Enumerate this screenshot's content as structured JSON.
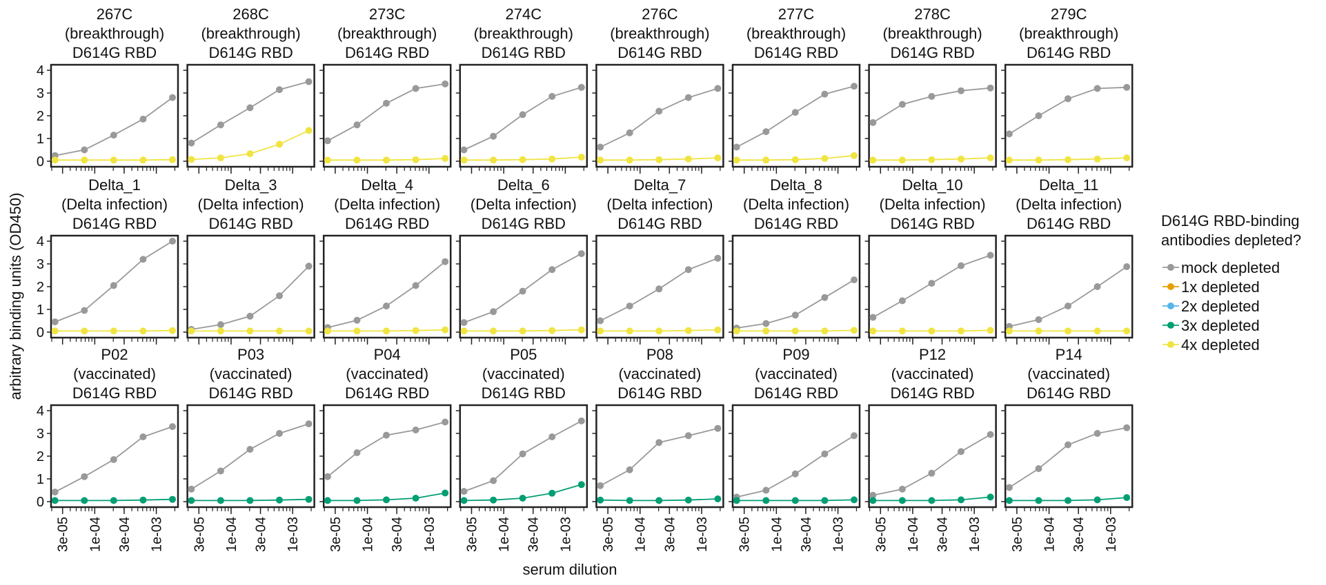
{
  "figure": {
    "ylabel": "arbitrary binding units (OD450)",
    "xlabel": "serum dilution",
    "xticks": [
      "3e-05",
      "1e-04",
      "3e-04",
      "1e-03"
    ],
    "yticks": [
      "0",
      "1",
      "2",
      "3",
      "4"
    ],
    "legend_title": [
      "D614G RBD-binding",
      "antibodies depleted?"
    ],
    "legend": [
      {
        "label": "mock depleted",
        "color": "#999999"
      },
      {
        "label": "1x depleted",
        "color": "#E69F00"
      },
      {
        "label": "2x depleted",
        "color": "#56B4E9"
      },
      {
        "label": "3x depleted",
        "color": "#009E73"
      },
      {
        "label": "4x depleted",
        "color": "#F0E442"
      }
    ]
  },
  "chart_data": {
    "type": "line",
    "x_scale": "log",
    "x": [
      2.26e-05,
      6.78e-05,
      0.000203,
      0.00061,
      0.00183
    ],
    "xlim": [
      1.95e-05,
      0.00225
    ],
    "ylim": [
      0,
      4
    ],
    "legend_position": "right",
    "panels": [
      {
        "title": [
          "267C",
          "(breakthrough)",
          "D614G RBD"
        ],
        "series": [
          {
            "name": "mock depleted",
            "values": [
              0.25,
              0.5,
              1.15,
              1.85,
              2.8
            ]
          },
          {
            "name": "4x depleted",
            "values": [
              0.05,
              0.05,
              0.05,
              0.05,
              0.07
            ]
          }
        ]
      },
      {
        "title": [
          "268C",
          "(breakthrough)",
          "D614G RBD"
        ],
        "series": [
          {
            "name": "mock depleted",
            "values": [
              0.8,
              1.6,
              2.35,
              3.15,
              3.5
            ]
          },
          {
            "name": "4x depleted",
            "values": [
              0.08,
              0.15,
              0.33,
              0.75,
              1.35
            ]
          }
        ]
      },
      {
        "title": [
          "273C",
          "(breakthrough)",
          "D614G RBD"
        ],
        "series": [
          {
            "name": "mock depleted",
            "values": [
              0.9,
              1.6,
              2.55,
              3.2,
              3.4
            ]
          },
          {
            "name": "4x depleted",
            "values": [
              0.05,
              0.05,
              0.05,
              0.07,
              0.12
            ]
          }
        ]
      },
      {
        "title": [
          "274C",
          "(breakthrough)",
          "D614G RBD"
        ],
        "series": [
          {
            "name": "mock depleted",
            "values": [
              0.5,
              1.1,
              2.05,
              2.85,
              3.25
            ]
          },
          {
            "name": "4x depleted",
            "values": [
              0.05,
              0.05,
              0.07,
              0.1,
              0.18
            ]
          }
        ]
      },
      {
        "title": [
          "276C",
          "(breakthrough)",
          "D614G RBD"
        ],
        "series": [
          {
            "name": "mock depleted",
            "values": [
              0.62,
              1.25,
              2.2,
              2.8,
              3.2
            ]
          },
          {
            "name": "4x depleted",
            "values": [
              0.05,
              0.05,
              0.07,
              0.1,
              0.15
            ]
          }
        ]
      },
      {
        "title": [
          "277C",
          "(breakthrough)",
          "D614G RBD"
        ],
        "series": [
          {
            "name": "mock depleted",
            "values": [
              0.62,
              1.3,
              2.15,
              2.95,
              3.3
            ]
          },
          {
            "name": "4x depleted",
            "values": [
              0.05,
              0.05,
              0.07,
              0.12,
              0.25
            ]
          }
        ]
      },
      {
        "title": [
          "278C",
          "(breakthrough)",
          "D614G RBD"
        ],
        "series": [
          {
            "name": "mock depleted",
            "values": [
              1.7,
              2.5,
              2.85,
              3.1,
              3.22
            ]
          },
          {
            "name": "4x depleted",
            "values": [
              0.05,
              0.05,
              0.07,
              0.1,
              0.15
            ]
          }
        ]
      },
      {
        "title": [
          "279C",
          "(breakthrough)",
          "D614G RBD"
        ],
        "series": [
          {
            "name": "mock depleted",
            "values": [
              1.2,
              2.0,
              2.75,
              3.2,
              3.25
            ]
          },
          {
            "name": "4x depleted",
            "values": [
              0.05,
              0.05,
              0.07,
              0.1,
              0.15
            ]
          }
        ]
      },
      {
        "title": [
          "Delta_1",
          "(Delta infection)",
          "D614G RBD"
        ],
        "series": [
          {
            "name": "mock depleted",
            "values": [
              0.45,
              0.95,
              2.05,
              3.2,
              4.0
            ]
          },
          {
            "name": "4x depleted",
            "values": [
              0.05,
              0.05,
              0.05,
              0.05,
              0.07
            ]
          }
        ]
      },
      {
        "title": [
          "Delta_3",
          "(Delta infection)",
          "D614G RBD"
        ],
        "series": [
          {
            "name": "mock depleted",
            "values": [
              0.12,
              0.33,
              0.7,
              1.6,
              2.9
            ]
          },
          {
            "name": "4x depleted",
            "values": [
              0.05,
              0.05,
              0.05,
              0.05,
              0.05
            ]
          }
        ]
      },
      {
        "title": [
          "Delta_4",
          "(Delta infection)",
          "D614G RBD"
        ],
        "series": [
          {
            "name": "mock depleted",
            "values": [
              0.2,
              0.52,
              1.15,
              2.05,
              3.1
            ]
          },
          {
            "name": "4x depleted",
            "values": [
              0.05,
              0.05,
              0.05,
              0.07,
              0.1
            ]
          }
        ]
      },
      {
        "title": [
          "Delta_6",
          "(Delta infection)",
          "D614G RBD"
        ],
        "series": [
          {
            "name": "mock depleted",
            "values": [
              0.42,
              0.9,
              1.8,
              2.75,
              3.45
            ]
          },
          {
            "name": "4x depleted",
            "values": [
              0.05,
              0.05,
              0.05,
              0.07,
              0.1
            ]
          }
        ]
      },
      {
        "title": [
          "Delta_7",
          "(Delta infection)",
          "D614G RBD"
        ],
        "series": [
          {
            "name": "mock depleted",
            "values": [
              0.5,
              1.15,
              1.9,
              2.75,
              3.25
            ]
          },
          {
            "name": "4x depleted",
            "values": [
              0.05,
              0.05,
              0.05,
              0.07,
              0.1
            ]
          }
        ]
      },
      {
        "title": [
          "Delta_8",
          "(Delta infection)",
          "D614G RBD"
        ],
        "series": [
          {
            "name": "mock depleted",
            "values": [
              0.18,
              0.38,
              0.75,
              1.52,
              2.3
            ]
          },
          {
            "name": "4x depleted",
            "values": [
              0.05,
              0.05,
              0.05,
              0.05,
              0.08
            ]
          }
        ]
      },
      {
        "title": [
          "Delta_10",
          "(Delta infection)",
          "D614G RBD"
        ],
        "series": [
          {
            "name": "mock depleted",
            "values": [
              0.65,
              1.38,
              2.15,
              2.92,
              3.38
            ]
          },
          {
            "name": "4x depleted",
            "values": [
              0.05,
              0.05,
              0.05,
              0.05,
              0.08
            ]
          }
        ]
      },
      {
        "title": [
          "Delta_11",
          "(Delta infection)",
          "D614G RBD"
        ],
        "series": [
          {
            "name": "mock depleted",
            "values": [
              0.25,
              0.55,
              1.15,
              2.0,
              2.88
            ]
          },
          {
            "name": "4x depleted",
            "values": [
              0.05,
              0.05,
              0.05,
              0.05,
              0.05
            ]
          }
        ]
      },
      {
        "title": [
          "P02",
          "(vaccinated)",
          "D614G RBD"
        ],
        "series": [
          {
            "name": "mock depleted",
            "values": [
              0.42,
              1.1,
              1.85,
              2.85,
              3.3
            ]
          },
          {
            "name": "3x depleted",
            "values": [
              0.05,
              0.05,
              0.05,
              0.07,
              0.1
            ]
          }
        ]
      },
      {
        "title": [
          "P03",
          "(vaccinated)",
          "D614G RBD"
        ],
        "series": [
          {
            "name": "mock depleted",
            "values": [
              0.55,
              1.35,
              2.3,
              3.0,
              3.42
            ]
          },
          {
            "name": "3x depleted",
            "values": [
              0.05,
              0.05,
              0.05,
              0.07,
              0.1
            ]
          }
        ]
      },
      {
        "title": [
          "P04",
          "(vaccinated)",
          "D614G RBD"
        ],
        "series": [
          {
            "name": "mock depleted",
            "values": [
              1.1,
              2.15,
              2.92,
              3.15,
              3.5
            ]
          },
          {
            "name": "3x depleted",
            "values": [
              0.05,
              0.05,
              0.08,
              0.15,
              0.38
            ]
          }
        ]
      },
      {
        "title": [
          "P05",
          "(vaccinated)",
          "D614G RBD"
        ],
        "series": [
          {
            "name": "mock depleted",
            "values": [
              0.45,
              0.92,
              2.1,
              2.85,
              3.55
            ]
          },
          {
            "name": "3x depleted",
            "values": [
              0.05,
              0.07,
              0.15,
              0.37,
              0.75
            ]
          }
        ]
      },
      {
        "title": [
          "P08",
          "(vaccinated)",
          "D614G RBD"
        ],
        "series": [
          {
            "name": "mock depleted",
            "values": [
              0.7,
              1.4,
              2.6,
              2.9,
              3.22
            ]
          },
          {
            "name": "3x depleted",
            "values": [
              0.07,
              0.05,
              0.05,
              0.07,
              0.12
            ]
          }
        ]
      },
      {
        "title": [
          "P09",
          "(vaccinated)",
          "D614G RBD"
        ],
        "series": [
          {
            "name": "mock depleted",
            "values": [
              0.2,
              0.5,
              1.22,
              2.1,
              2.9
            ]
          },
          {
            "name": "3x depleted",
            "values": [
              0.05,
              0.05,
              0.05,
              0.05,
              0.08
            ]
          }
        ]
      },
      {
        "title": [
          "P12",
          "(vaccinated)",
          "D614G RBD"
        ],
        "series": [
          {
            "name": "mock depleted",
            "values": [
              0.28,
              0.55,
              1.25,
              2.2,
              2.95
            ]
          },
          {
            "name": "3x depleted",
            "values": [
              0.05,
              0.05,
              0.05,
              0.08,
              0.2
            ]
          }
        ]
      },
      {
        "title": [
          "P14",
          "(vaccinated)",
          "D614G RBD"
        ],
        "series": [
          {
            "name": "mock depleted",
            "values": [
              0.62,
              1.45,
              2.5,
              3.0,
              3.25
            ]
          },
          {
            "name": "3x depleted",
            "values": [
              0.05,
              0.05,
              0.05,
              0.08,
              0.18
            ]
          }
        ]
      }
    ]
  }
}
